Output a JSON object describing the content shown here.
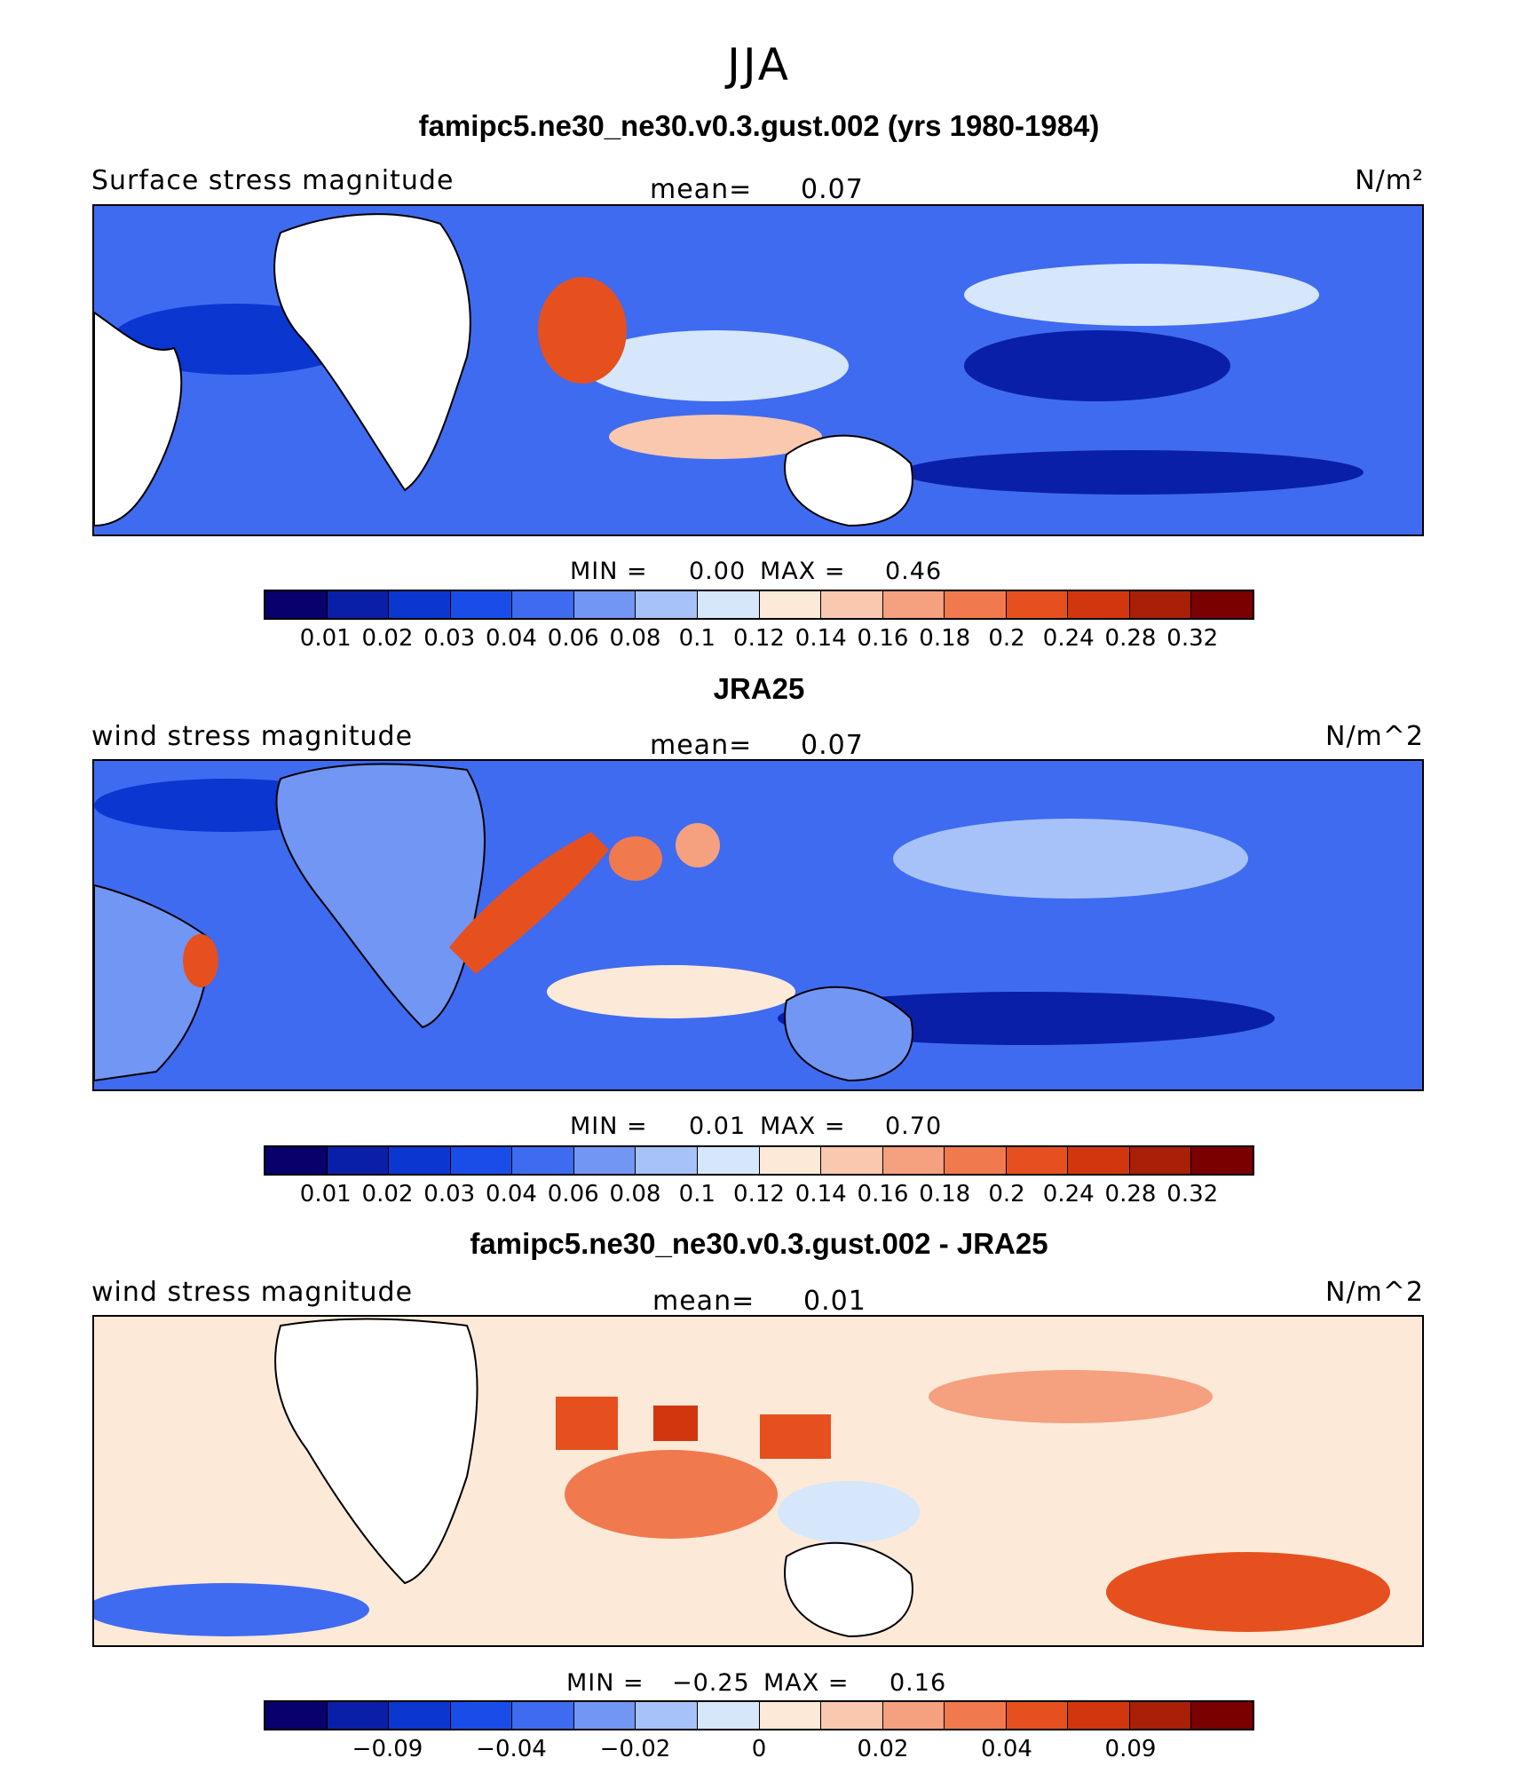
{
  "season": "JJA",
  "panels": [
    {
      "title": "famipc5.ne30_ne30.v0.3.gust.002 (yrs 1980-1984)",
      "variable": "Surface stress magnitude",
      "mean_label": "mean=",
      "mean_value": "0.07",
      "units": "N/m²",
      "min_label": "MIN =",
      "min_value": "0.00",
      "max_label": "MAX =",
      "max_value": "0.46",
      "colorbar_ticks": [
        "0.01",
        "0.02",
        "0.03",
        "0.04",
        "0.06",
        "0.08",
        "0.1",
        "0.12",
        "0.14",
        "0.16",
        "0.18",
        "0.2",
        "0.24",
        "0.28",
        "0.32"
      ]
    },
    {
      "title": "JRA25",
      "variable": "wind stress magnitude",
      "mean_label": "mean=",
      "mean_value": "0.07",
      "units": "N/m^2",
      "min_label": "MIN =",
      "min_value": "0.01",
      "max_label": "MAX =",
      "max_value": "0.70",
      "colorbar_ticks": [
        "0.01",
        "0.02",
        "0.03",
        "0.04",
        "0.06",
        "0.08",
        "0.1",
        "0.12",
        "0.14",
        "0.16",
        "0.18",
        "0.2",
        "0.24",
        "0.28",
        "0.32"
      ]
    },
    {
      "title": "famipc5.ne30_ne30.v0.3.gust.002 - JRA25",
      "variable": "wind stress magnitude",
      "mean_label": "mean=",
      "mean_value": "0.01",
      "units": "N/m^2",
      "min_label": "MIN =",
      "min_value": "−0.25",
      "max_label": "MAX =",
      "max_value": "0.16",
      "colorbar_ticks": [
        "−0.09",
        "−0.04",
        "−0.02",
        "0",
        "0.02",
        "0.04",
        "0.09"
      ]
    }
  ],
  "colors": {
    "palette": [
      "#08006b",
      "#0a1fa8",
      "#0b36d0",
      "#1a4de8",
      "#3f6bf0",
      "#7196f4",
      "#a6c2f8",
      "#d6e6fb",
      "#fde9d8",
      "#fac8ae",
      "#f5a07e",
      "#f07a4e",
      "#e6501f",
      "#d1360f",
      "#a91f08",
      "#7a0000"
    ],
    "land_fill": "#ffffff"
  }
}
